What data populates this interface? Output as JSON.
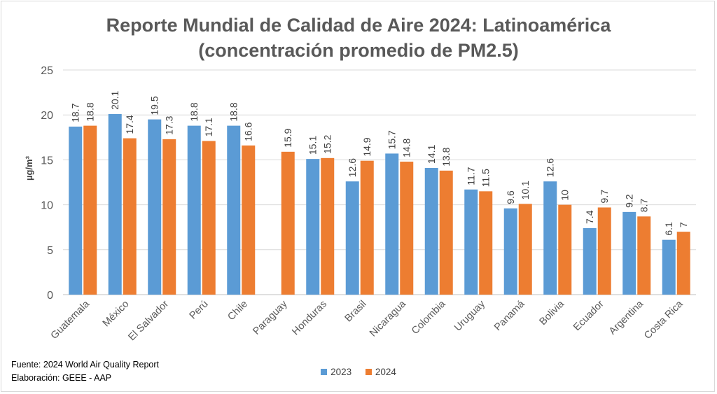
{
  "chart_data": {
    "type": "bar",
    "title_line1": "Reporte Mundial de Calidad de Aire 2024: Latinoamérica",
    "title_line2": "(concentración promedio de PM2.5)",
    "ylabel": "µg/m³",
    "ylim": [
      0,
      25
    ],
    "yticks": [
      "0",
      "5",
      "10",
      "15",
      "20",
      "25"
    ],
    "categories": [
      "Guatemala",
      "México",
      "El Salvador",
      "Perú",
      "Chile",
      "Paraguay",
      "Honduras",
      "Brasil",
      "Nicaragua",
      "Colombia",
      "Uruguay",
      "Panamá",
      "Bolivia",
      "Ecuador",
      "Argentina",
      "Costa Rica"
    ],
    "series": [
      {
        "name": "2023",
        "color": "#5b9bd5",
        "values": [
          18.7,
          20.1,
          19.5,
          18.8,
          18.8,
          null,
          15.1,
          12.6,
          15.7,
          14.1,
          11.7,
          9.6,
          12.6,
          7.4,
          9.2,
          6.1
        ]
      },
      {
        "name": "2024",
        "color": "#ed7d31",
        "values": [
          18.8,
          17.4,
          17.3,
          17.1,
          16.6,
          15.9,
          15.2,
          14.9,
          14.8,
          13.8,
          11.5,
          10.1,
          10,
          9.7,
          8.7,
          7
        ]
      }
    ],
    "grid": true,
    "legend_position": "bottom"
  },
  "source": {
    "line1": "Fuente: 2024 World Air Quality  Report",
    "line2": "Elaboración: GEEE - AAP"
  }
}
